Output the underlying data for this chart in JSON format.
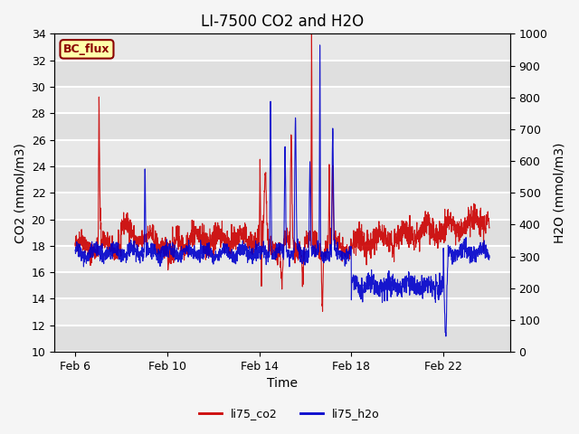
{
  "title": "LI-7500 CO2 and H2O",
  "xlabel": "Time",
  "ylabel_left": "CO2 (mmol/m3)",
  "ylabel_right": "H2O (mmol/m3)",
  "ylim_left": [
    10,
    34
  ],
  "ylim_right": [
    0,
    1000
  ],
  "co2_color": "#cc0000",
  "h2o_color": "#0000cc",
  "background_color": "#f0f0f0",
  "plot_bg_color": "#e8e8e8",
  "legend_labels": [
    "li75_co2",
    "li75_h2o"
  ],
  "bc_flux_label": "BC_flux",
  "bc_flux_bg": "#ffffaa",
  "bc_flux_border": "#8B0000",
  "title_fontsize": 12,
  "axis_fontsize": 10,
  "tick_fontsize": 9
}
